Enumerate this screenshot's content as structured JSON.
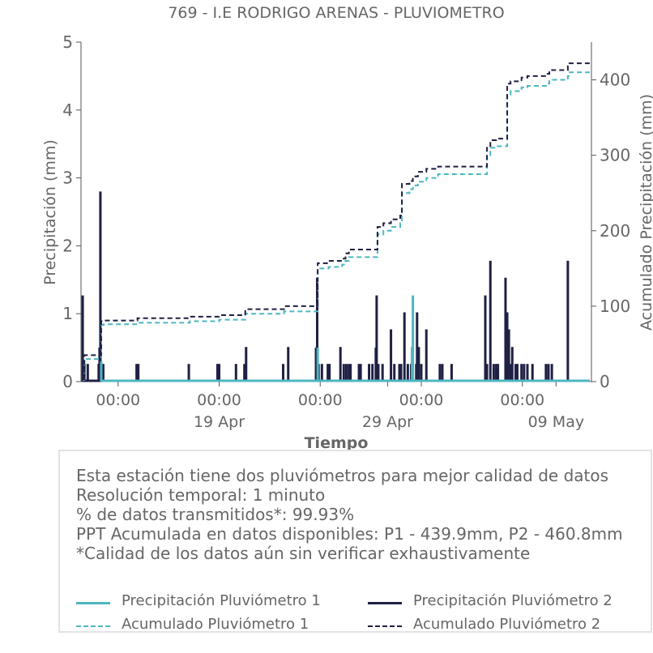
{
  "chart_data": {
    "type": "bar",
    "title": "769 - I.E RODRIGO ARENAS - PLUVIOMETRO",
    "xlabel": "Tiempo",
    "ylabel": "Precipitación (mm)",
    "y2label": "Acumulado Precipitación (mm)",
    "ylim": [
      0,
      5
    ],
    "y2lim": [
      0,
      450
    ],
    "yticks": [
      0,
      1,
      2,
      3,
      4,
      5
    ],
    "y2ticks": [
      0,
      100,
      200,
      300,
      400
    ],
    "xlim": [
      -2.2,
      28.1
    ],
    "xticks": [
      {
        "x": 0,
        "top": "00:00",
        "bottom": ""
      },
      {
        "x": 6,
        "top": "00:00",
        "bottom": "19 Apr"
      },
      {
        "x": 12,
        "top": "00:00",
        "bottom": ""
      },
      {
        "x": 16,
        "top": "",
        "bottom": "29 Apr"
      },
      {
        "x": 18,
        "top": "00:00",
        "bottom": ""
      },
      {
        "x": 24,
        "top": "00:00",
        "bottom": ""
      },
      {
        "x": 26,
        "top": "",
        "bottom": "09 May"
      }
    ],
    "colors": {
      "p1": "#4db6c1",
      "p2": "#1f2044",
      "a1": "#4db6c1",
      "a2": "#1f2044"
    },
    "series": [
      {
        "name": "Precipitación Pluviómetro 2",
        "kind": "bar",
        "points": [
          [
            -2.1,
            1.27
          ],
          [
            -2.0,
            0.26
          ],
          [
            -1.8,
            0.26
          ],
          [
            -1.15,
            0.26
          ],
          [
            -1.1,
            0.5
          ],
          [
            -1.05,
            2.8
          ],
          [
            -0.95,
            0.26
          ],
          [
            -0.88,
            0.26
          ],
          [
            1.1,
            0.26
          ],
          [
            1.2,
            0.26
          ],
          [
            4.2,
            0.26
          ],
          [
            5.9,
            0.26
          ],
          [
            6.0,
            0.26
          ],
          [
            7.0,
            0.26
          ],
          [
            7.5,
            0.26
          ],
          [
            7.6,
            0.51
          ],
          [
            9.8,
            0.26
          ],
          [
            10.1,
            0.51
          ],
          [
            11.75,
            0.5
          ],
          [
            11.82,
            1.53
          ],
          [
            11.9,
            0.26
          ],
          [
            12.1,
            0.26
          ],
          [
            12.45,
            0.26
          ],
          [
            12.55,
            0.26
          ],
          [
            13.2,
            0.51
          ],
          [
            13.4,
            0.26
          ],
          [
            13.55,
            0.26
          ],
          [
            13.7,
            0.26
          ],
          [
            13.8,
            0.26
          ],
          [
            14.3,
            0.26
          ],
          [
            14.4,
            0.26
          ],
          [
            14.9,
            0.26
          ],
          [
            15.1,
            0.26
          ],
          [
            15.3,
            0.5
          ],
          [
            15.35,
            1.27
          ],
          [
            15.45,
            0.26
          ],
          [
            15.7,
            0.26
          ],
          [
            16.2,
            0.77
          ],
          [
            16.4,
            0.26
          ],
          [
            16.7,
            0.26
          ],
          [
            16.8,
            0.26
          ],
          [
            17.0,
            1.02
          ],
          [
            17.2,
            0.26
          ],
          [
            17.4,
            0.26
          ],
          [
            17.7,
            0.26
          ],
          [
            17.75,
            1.02
          ],
          [
            17.85,
            0.51
          ],
          [
            18.0,
            0.26
          ],
          [
            18.3,
            0.77
          ],
          [
            19.1,
            0.26
          ],
          [
            19.25,
            0.26
          ],
          [
            19.8,
            0.26
          ],
          [
            21.8,
            1.27
          ],
          [
            21.9,
            0.26
          ],
          [
            22.1,
            1.78
          ],
          [
            22.3,
            0.26
          ],
          [
            22.45,
            0.26
          ],
          [
            22.55,
            0.26
          ],
          [
            23.0,
            1.53
          ],
          [
            23.1,
            1.02
          ],
          [
            23.2,
            0.77
          ],
          [
            23.3,
            0.26
          ],
          [
            23.4,
            0.51
          ],
          [
            23.6,
            0.26
          ],
          [
            23.7,
            0.26
          ],
          [
            23.95,
            0.26
          ],
          [
            24.1,
            0.26
          ],
          [
            24.3,
            0.26
          ],
          [
            24.6,
            0.26
          ],
          [
            25.4,
            0.26
          ],
          [
            25.55,
            0.26
          ],
          [
            25.75,
            0.26
          ],
          [
            26.7,
            1.78
          ]
        ]
      },
      {
        "name": "Precipitación Pluviómetro 1",
        "kind": "bar",
        "points": [
          [
            -1.0,
            0.3
          ],
          [
            17.5,
            1.27
          ],
          [
            17.45,
            0.51
          ],
          [
            11.85,
            0.5
          ]
        ]
      },
      {
        "name": "Acumulado Pluviómetro 1",
        "kind": "step-dashed",
        "points": [
          [
            -2.1,
            2
          ],
          [
            -2.0,
            30
          ],
          [
            -1.05,
            30
          ],
          [
            -1.0,
            75
          ],
          [
            -0.85,
            76
          ],
          [
            1.1,
            76
          ],
          [
            1.15,
            78
          ],
          [
            4.2,
            78
          ],
          [
            4.25,
            80
          ],
          [
            5.9,
            80
          ],
          [
            6.0,
            82
          ],
          [
            7.5,
            82
          ],
          [
            7.55,
            90
          ],
          [
            9.8,
            90
          ],
          [
            9.85,
            93
          ],
          [
            11.75,
            93
          ],
          [
            11.85,
            150
          ],
          [
            12.45,
            150
          ],
          [
            12.5,
            152
          ],
          [
            13.3,
            155
          ],
          [
            13.5,
            160
          ],
          [
            13.7,
            165
          ],
          [
            15.25,
            165
          ],
          [
            15.4,
            195
          ],
          [
            15.75,
            200
          ],
          [
            16.2,
            205
          ],
          [
            16.75,
            210
          ],
          [
            16.85,
            250
          ],
          [
            17.3,
            255
          ],
          [
            17.5,
            260
          ],
          [
            17.8,
            265
          ],
          [
            18.3,
            270
          ],
          [
            19.0,
            275
          ],
          [
            21.8,
            275
          ],
          [
            21.9,
            300
          ],
          [
            22.1,
            310
          ],
          [
            22.45,
            312
          ],
          [
            22.9,
            312
          ],
          [
            23.1,
            380
          ],
          [
            23.3,
            385
          ],
          [
            23.95,
            390
          ],
          [
            24.3,
            392
          ],
          [
            25.4,
            395
          ],
          [
            25.6,
            400
          ],
          [
            26.7,
            405
          ],
          [
            26.75,
            410
          ],
          [
            28.0,
            410
          ]
        ]
      },
      {
        "name": "Acumulado Pluviómetro 2",
        "kind": "step-dashed",
        "points": [
          [
            -2.1,
            3
          ],
          [
            -2.0,
            35
          ],
          [
            -1.05,
            35
          ],
          [
            -1.0,
            80
          ],
          [
            -0.85,
            81
          ],
          [
            1.1,
            81
          ],
          [
            1.15,
            84
          ],
          [
            4.2,
            84
          ],
          [
            4.25,
            86
          ],
          [
            5.9,
            86
          ],
          [
            6.0,
            88
          ],
          [
            7.5,
            88
          ],
          [
            7.55,
            96
          ],
          [
            9.8,
            96
          ],
          [
            9.85,
            100
          ],
          [
            11.75,
            100
          ],
          [
            11.85,
            157
          ],
          [
            12.45,
            157
          ],
          [
            12.5,
            160
          ],
          [
            13.3,
            163
          ],
          [
            13.5,
            170
          ],
          [
            13.7,
            175
          ],
          [
            15.25,
            175
          ],
          [
            15.4,
            205
          ],
          [
            15.75,
            210
          ],
          [
            16.2,
            215
          ],
          [
            16.75,
            220
          ],
          [
            16.85,
            262
          ],
          [
            17.3,
            266
          ],
          [
            17.5,
            272
          ],
          [
            17.8,
            278
          ],
          [
            18.3,
            282
          ],
          [
            19.0,
            285
          ],
          [
            21.8,
            285
          ],
          [
            21.9,
            310
          ],
          [
            22.1,
            320
          ],
          [
            22.45,
            322
          ],
          [
            22.9,
            322
          ],
          [
            23.1,
            395
          ],
          [
            23.3,
            398
          ],
          [
            23.95,
            403
          ],
          [
            24.3,
            405
          ],
          [
            25.4,
            408
          ],
          [
            25.6,
            413
          ],
          [
            26.7,
            418
          ],
          [
            26.75,
            422
          ],
          [
            28.0,
            422
          ]
        ]
      }
    ]
  },
  "info": {
    "lines": [
      "Esta estación tiene dos pluviómetros para mejor calidad de datos",
      "Resolución temporal: 1 minuto",
      "% de datos transmitidos*: 99.93%",
      "PPT Acumulada en datos disponibles: P1 - 439.9mm, P2 - 460.8mm",
      "*Calidad de los datos aún sin verificar exhaustivamente"
    ]
  },
  "legend": {
    "p1": "Precipitación Pluviómetro 1",
    "p2": "Precipitación Pluviómetro 2",
    "a1": "Acumulado Pluviómetro 1",
    "a2": "Acumulado Pluviómetro 2"
  }
}
